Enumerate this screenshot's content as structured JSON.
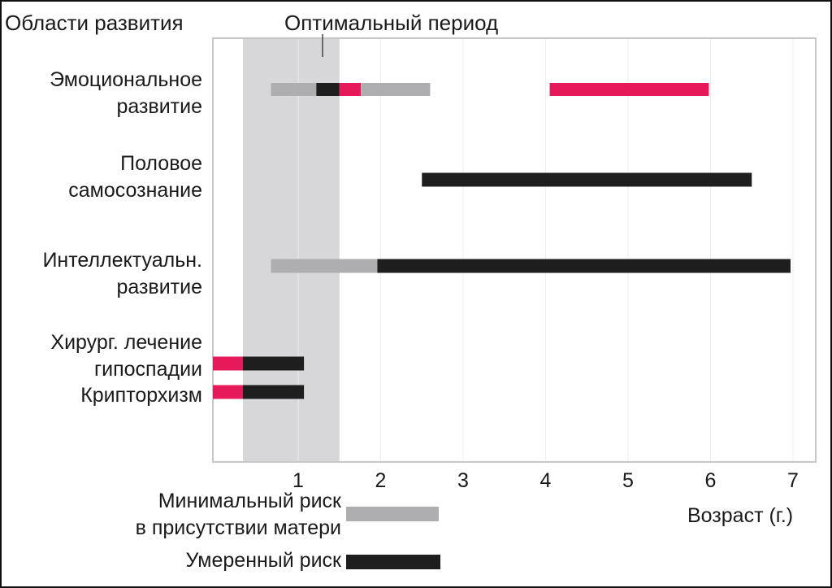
{
  "chart_data": {
    "type": "gantt",
    "header_left": "Области развития",
    "header_center": "Оптимальный период",
    "xlabel": "Возраст (г.)",
    "xlim": [
      -0.05,
      7.2
    ],
    "xticks": [
      "1",
      "2",
      "3",
      "4",
      "5",
      "6",
      "7"
    ],
    "optimal_period": [
      0.33,
      1.5
    ],
    "categories": [
      {
        "lines": [
          "Эмоциональное",
          "развитие"
        ],
        "segments": [
          {
            "start": 0.67,
            "end": 1.22,
            "risk": "minimal"
          },
          {
            "start": 1.22,
            "end": 1.5,
            "risk": "moderate"
          },
          {
            "start": 1.5,
            "end": 1.76,
            "risk": "high"
          },
          {
            "start": 1.76,
            "end": 2.6,
            "risk": "minimal"
          },
          {
            "start": 4.05,
            "end": 5.98,
            "risk": "high"
          }
        ]
      },
      {
        "lines": [
          "Половое",
          "самосознание"
        ],
        "segments": [
          {
            "start": 2.5,
            "end": 6.5,
            "risk": "moderate"
          }
        ]
      },
      {
        "lines": [
          "Интеллектуальн.",
          "развитие"
        ],
        "segments": [
          {
            "start": 0.67,
            "end": 1.96,
            "risk": "minimal"
          },
          {
            "start": 1.96,
            "end": 6.97,
            "risk": "moderate"
          }
        ]
      },
      {
        "lines": [
          "Хирург. лечение",
          "гипоспадии"
        ],
        "segments": [
          {
            "start": -0.05,
            "end": 0.33,
            "risk": "high"
          },
          {
            "start": 0.33,
            "end": 1.07,
            "risk": "moderate"
          }
        ]
      },
      {
        "lines": [
          "Крипторхизм"
        ],
        "segments": [
          {
            "start": -0.05,
            "end": 0.33,
            "risk": "high"
          },
          {
            "start": 0.33,
            "end": 1.07,
            "risk": "moderate"
          }
        ]
      }
    ],
    "legend": [
      {
        "lines": [
          "Минимальный риск",
          "в присутствии матери"
        ],
        "risk": "minimal"
      },
      {
        "lines": [
          "Умеренный риск"
        ],
        "risk": "moderate"
      }
    ],
    "colors": {
      "minimal": "#aeaeb0",
      "moderate": "#1e1e1e",
      "high": "#e6195a",
      "optimal_band": "#d7d7d9",
      "plot_border": "#c8c8c8",
      "grid": "#eeeeee"
    }
  }
}
